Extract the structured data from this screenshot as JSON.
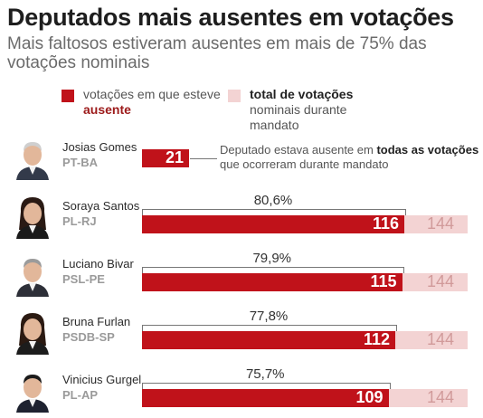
{
  "header": {
    "title": "Deputados mais ausentes em votações",
    "subtitle": "Mais faltosos estiveram ausentes em mais de 75% das votações nominais"
  },
  "legend": {
    "absent": {
      "pre": "votações em que esteve ",
      "bold": "ausente",
      "post": ""
    },
    "total": {
      "pre": "",
      "bold": "total de votações",
      "post": " nominais durante mandato"
    }
  },
  "colors": {
    "absent": "#c0121a",
    "total": "#f3d3d3",
    "title": "#1e1e1e"
  },
  "note": {
    "pre": "Deputado estava ausente em ",
    "bold1": "todas as votações",
    "post": " que ocorreram durante mandato"
  },
  "chart_data": {
    "type": "bar",
    "categories": [
      "Josias Gomes",
      "Soraya Santos",
      "Luciano Bivar",
      "Bruna Furlan",
      "Vinicius Gurgel"
    ],
    "parties": [
      "PT-BA",
      "PL-RJ",
      "PSL-PE",
      "PSDB-SP",
      "PL-AP"
    ],
    "series": [
      {
        "name": "votações em que esteve ausente",
        "values": [
          21,
          116,
          115,
          112,
          109
        ]
      },
      {
        "name": "total de votações nominais durante mandato",
        "values": [
          21,
          144,
          144,
          144,
          144
        ]
      }
    ],
    "percent_labels": [
      "",
      "80,6%",
      "79,9%",
      "77,8%",
      "75,7%"
    ],
    "total_labels": [
      "",
      "144",
      "144",
      "144",
      "144"
    ],
    "orientation": "horizontal",
    "xlim": [
      0,
      144
    ]
  }
}
